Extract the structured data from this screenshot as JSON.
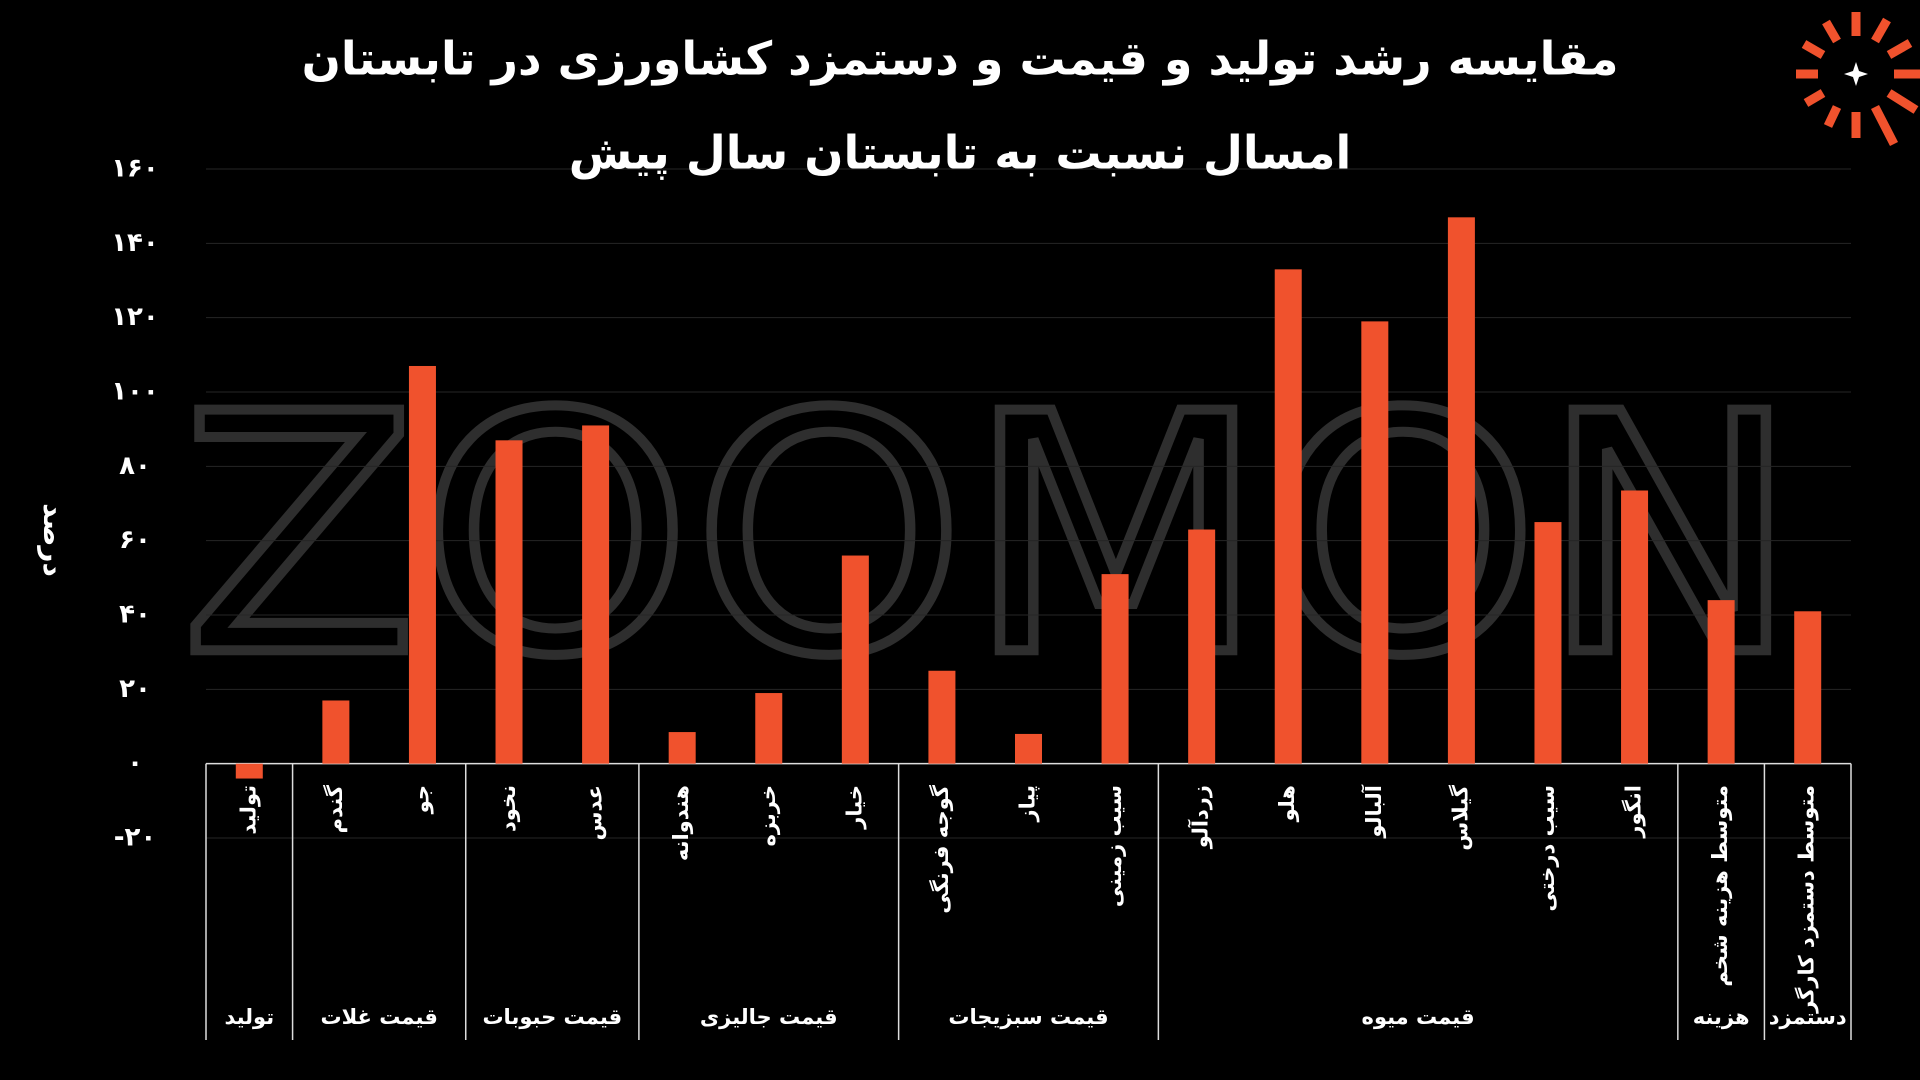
{
  "chart_data": {
    "type": "bar",
    "title": [
      "مقایسه رشد تولید و قیمت و دستمزد کشاورزی در تابستان",
      "امسال نسبت به تابستان سال پیش"
    ],
    "y_label": "درصد",
    "watermark": "ZOOMON",
    "color": "#f0522d",
    "grid": true,
    "ylim": [
      -20,
      160
    ],
    "yticks": [
      {
        "value": -20,
        "label": "-۲۰"
      },
      {
        "value": 0,
        "label": "۰"
      },
      {
        "value": 20,
        "label": "۲۰"
      },
      {
        "value": 40,
        "label": "۴۰"
      },
      {
        "value": 60,
        "label": "۶۰"
      },
      {
        "value": 80,
        "label": "۸۰"
      },
      {
        "value": 100,
        "label": "۱۰۰"
      },
      {
        "value": 120,
        "label": "۱۲۰"
      },
      {
        "value": 140,
        "label": "۱۴۰"
      },
      {
        "value": 160,
        "label": "۱۶۰"
      }
    ],
    "groups": [
      {
        "label": "تولید",
        "categories": [
          "تولید"
        ],
        "values": [
          -4
        ]
      },
      {
        "label": "قیمت غلات",
        "categories": [
          "گندم",
          "جو"
        ],
        "values": [
          17,
          107
        ]
      },
      {
        "label": "قیمت حبوبات",
        "categories": [
          "نخود",
          "عدس"
        ],
        "values": [
          87,
          91
        ]
      },
      {
        "label": "قیمت جالیزی",
        "categories": [
          "هندوانه",
          "خربزه",
          "خیار"
        ],
        "values": [
          8.5,
          19,
          56
        ]
      },
      {
        "label": "قیمت سبزیجات",
        "categories": [
          "گوجه فرنگی",
          "پیاز",
          "سیب زمینی"
        ],
        "values": [
          25,
          8,
          51
        ]
      },
      {
        "label": "قیمت میوه",
        "categories": [
          "زردآلو",
          "هلو",
          "آلبالو",
          "گیلاس",
          "سیب درختی",
          "انگور"
        ],
        "values": [
          63,
          133,
          119,
          147,
          65,
          73.5
        ]
      },
      {
        "label": "هزینه",
        "categories": [
          "متوسط هزینه شخم"
        ],
        "values": [
          44
        ]
      },
      {
        "label": "دستمزد",
        "categories": [
          "متوسط دستمزد کارگر"
        ],
        "values": [
          41
        ]
      }
    ]
  }
}
